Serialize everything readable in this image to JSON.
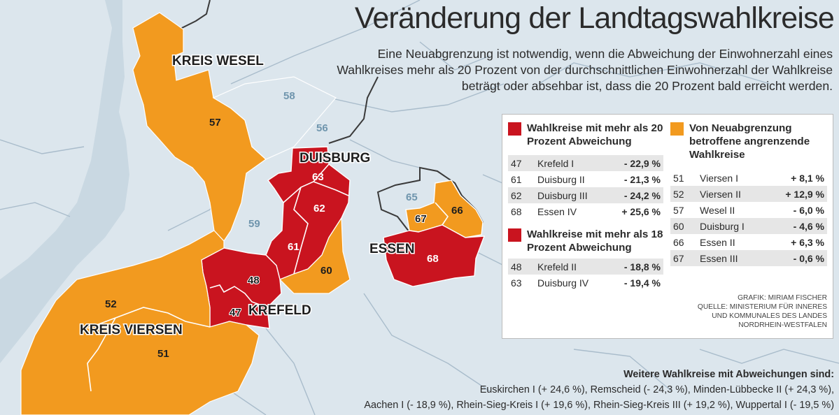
{
  "title": "Veränderung der Landtagswahlkreise",
  "subtitle": "Eine Neuabgrenzung ist notwendig, wenn die Abweichung der Einwohnerzahl eines Wahlkreises mehr als 20 Prozent von der durchschnittlichen Einwohnerzahl der Wahlkreise beträgt oder absehbar ist, dass die 20 Prozent bald erreicht werden.",
  "colors": {
    "red": "#c9141f",
    "orange": "#f29a1f",
    "water": "#c9d8e2",
    "land": "#dce6ed",
    "border": "#3a3a3a",
    "blue_label": "#6f95ad"
  },
  "map": {
    "regions": {
      "kreis_wesel": "KREIS WESEL",
      "duisburg": "DUISBURG",
      "krefeld": "KREFELD",
      "essen": "ESSEN",
      "kreis_viersen": "KREIS VIERSEN"
    },
    "numbers": {
      "n57": "57",
      "n58": "58",
      "n56": "56",
      "n59": "59",
      "n63": "63",
      "n62": "62",
      "n61": "61",
      "n60": "60",
      "n48": "48",
      "n47": "47",
      "n52": "52",
      "n51": "51",
      "n65": "65",
      "n67": "67",
      "n66": "66",
      "n68": "68"
    }
  },
  "legend": {
    "over20": {
      "title": "Wahlkreise mit mehr als 20 Prozent Abweichung",
      "rows": [
        {
          "num": "47",
          "name": "Krefeld I",
          "value": "- 22,9 %"
        },
        {
          "num": "61",
          "name": "Duisburg II",
          "value": "- 21,3 %"
        },
        {
          "num": "62",
          "name": "Duisburg III",
          "value": "- 24,2 %"
        },
        {
          "num": "68",
          "name": "Essen IV",
          "value": "+ 25,6 %"
        }
      ]
    },
    "over18": {
      "title": "Wahlkreise mit mehr als 18 Prozent Abweichung",
      "rows": [
        {
          "num": "48",
          "name": "Krefeld II",
          "value": "- 18,8 %"
        },
        {
          "num": "63",
          "name": "Duisburg IV",
          "value": "- 19,4 %"
        }
      ]
    },
    "neighbors": {
      "title": "Von Neuabgrenzung betroffene angrenzende Wahlkreise",
      "rows": [
        {
          "num": "51",
          "name": "Viersen I",
          "value": "+ 8,1 %"
        },
        {
          "num": "52",
          "name": "Viersen II",
          "value": "+ 12,9 %"
        },
        {
          "num": "57",
          "name": "Wesel II",
          "value": "- 6,0 %"
        },
        {
          "num": "60",
          "name": "Duisburg I",
          "value": "- 4,6 %"
        },
        {
          "num": "66",
          "name": "Essen II",
          "value": "+ 6,3 %"
        },
        {
          "num": "67",
          "name": "Essen III",
          "value": "- 0,6 %"
        }
      ]
    },
    "credit": {
      "grafik": "GRAFIK: MIRIAM FISCHER",
      "quelle1": "QUELLE: MINISTERIUM FÜR INNERES",
      "quelle2": "UND KOMMUNALES DES LANDES",
      "quelle3": "NORDRHEIN-WESTFALEN"
    }
  },
  "footer": {
    "heading": "Weitere Wahlkreise mit Abweichungen sind:",
    "line1": "Euskirchen I (+ 24,6 %), Remscheid (- 24,3 %), Minden-Lübbecke II (+ 24,3 %),",
    "line2": "Aachen I (- 18,9 %), Rhein-Sieg-Kreis I (+ 19,6 %), Rhein-Sieg-Kreis III (+ 19,2 %), Wuppertal I (- 19,5 %)"
  }
}
